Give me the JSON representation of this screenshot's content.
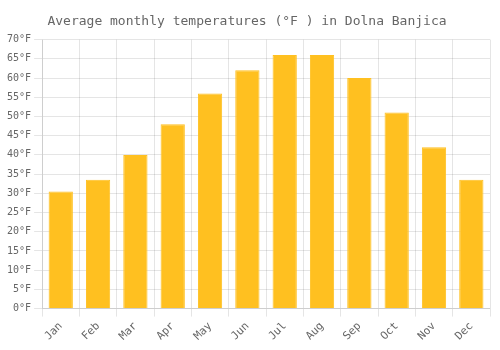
{
  "chart_data": {
    "type": "bar",
    "title": "Average monthly temperatures (°F ) in Dolna Banjica",
    "categories": [
      "Jan",
      "Feb",
      "Mar",
      "Apr",
      "May",
      "Jun",
      "Jul",
      "Aug",
      "Sep",
      "Oct",
      "Nov",
      "Dec"
    ],
    "values": [
      30.5,
      33.5,
      40.0,
      48.0,
      56.0,
      62.0,
      66.0,
      66.0,
      60.0,
      51.0,
      42.0,
      33.5
    ],
    "color": "#FFC020",
    "ylim": [
      0,
      70
    ],
    "yticks": [
      {
        "value": 0,
        "label": "0°F"
      },
      {
        "value": 5,
        "label": "5°F"
      },
      {
        "value": 10,
        "label": "10°F"
      },
      {
        "value": 15,
        "label": "15°F"
      },
      {
        "value": 20,
        "label": "20°F"
      },
      {
        "value": 25,
        "label": "25°F"
      },
      {
        "value": 30,
        "label": "30°F"
      },
      {
        "value": 35,
        "label": "35°F"
      },
      {
        "value": 40,
        "label": "40°F"
      },
      {
        "value": 45,
        "label": "45°F"
      },
      {
        "value": 50,
        "label": "50°F"
      },
      {
        "value": 55,
        "label": "55°F"
      },
      {
        "value": 60,
        "label": "60°F"
      },
      {
        "value": 65,
        "label": "65°F"
      },
      {
        "value": 70,
        "label": "70°F"
      }
    ],
    "grid": true
  }
}
